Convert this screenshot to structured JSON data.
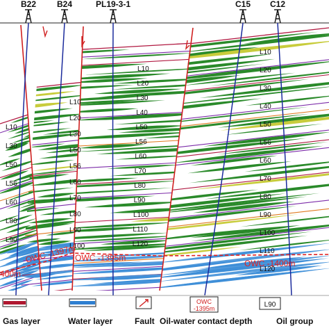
{
  "wells": [
    {
      "id": "b22",
      "name": "B22"
    },
    {
      "id": "b24",
      "name": "B24"
    },
    {
      "id": "pl19",
      "name": "PL19-3-1"
    },
    {
      "id": "c15",
      "name": "C15"
    },
    {
      "id": "c12",
      "name": "C12"
    }
  ],
  "oil_group_labels": {
    "block1": [
      "L10",
      "L30",
      "L50",
      "L56",
      "L60",
      "L80",
      "L90"
    ],
    "block2": [
      "L10",
      "L20",
      "L30",
      "L50",
      "L56",
      "L60",
      "L70",
      "L80",
      "L90",
      "L100"
    ],
    "block3": [
      "L10",
      "L20",
      "L30",
      "L40",
      "L50",
      "L56",
      "L60",
      "L70",
      "L80",
      "L90",
      "L100",
      "L110",
      "L120"
    ],
    "block4": [
      "L10",
      "L20",
      "L30",
      "L40",
      "L50",
      "L56",
      "L60",
      "L70",
      "L80",
      "L90",
      "L100",
      "L110",
      "L120"
    ]
  },
  "owc_labels": [
    "OWC -1397m",
    "OWC -1395m",
    "OWC -1400m"
  ],
  "partial_label": "400m",
  "legend": {
    "gas": "Gas layer",
    "water": "Water layer",
    "fault": "Fault",
    "owc_box_line1": "OWC",
    "owc_box_line2": "-1395m",
    "owc": "Oil-water contact depth",
    "oil_box": "L90",
    "oil": "Oil group"
  },
  "colors": {
    "oil": "#2a8a2a",
    "gas": "#c8cc3c",
    "water": "#3f8fd8",
    "fault": "#d02020",
    "purple": "#7b2aa8",
    "orange": "#e07a20",
    "red_line": "#b01840",
    "well": "#1a2a9c",
    "owc": "#e02020"
  }
}
